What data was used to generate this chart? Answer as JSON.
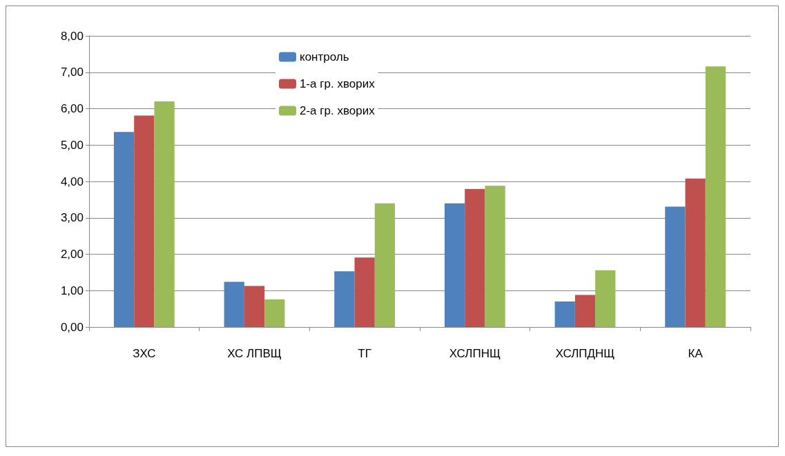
{
  "chart_data": {
    "type": "bar",
    "categories": [
      "ЗХС",
      "ХС ЛПВЩ",
      "ТГ",
      "ХСЛПНЩ",
      "ХСЛПДНЩ",
      "КА"
    ],
    "series": [
      {
        "name": "контроль",
        "color": "#4f81bd",
        "values": [
          5.36,
          1.24,
          1.53,
          3.4,
          0.7,
          3.31
        ]
      },
      {
        "name": "1-а гр. хворих",
        "color": "#c0504d",
        "values": [
          5.81,
          1.13,
          1.91,
          3.79,
          0.88,
          4.08
        ]
      },
      {
        "name": "2-а гр. хворих",
        "color": "#9bbb59",
        "values": [
          6.2,
          0.76,
          3.4,
          3.88,
          1.56,
          7.16
        ]
      }
    ],
    "ylim": [
      0,
      8
    ],
    "yticks": [
      {
        "value": 0,
        "label": "0,00"
      },
      {
        "value": 1,
        "label": "1,00"
      },
      {
        "value": 2,
        "label": "2,00"
      },
      {
        "value": 3,
        "label": "3,00"
      },
      {
        "value": 4,
        "label": "4,00"
      },
      {
        "value": 5,
        "label": "5,00"
      },
      {
        "value": 6,
        "label": "6,00"
      },
      {
        "value": 7,
        "label": "7,00"
      },
      {
        "value": 8,
        "label": "8,00"
      }
    ],
    "grid": "y",
    "legend": "top"
  }
}
